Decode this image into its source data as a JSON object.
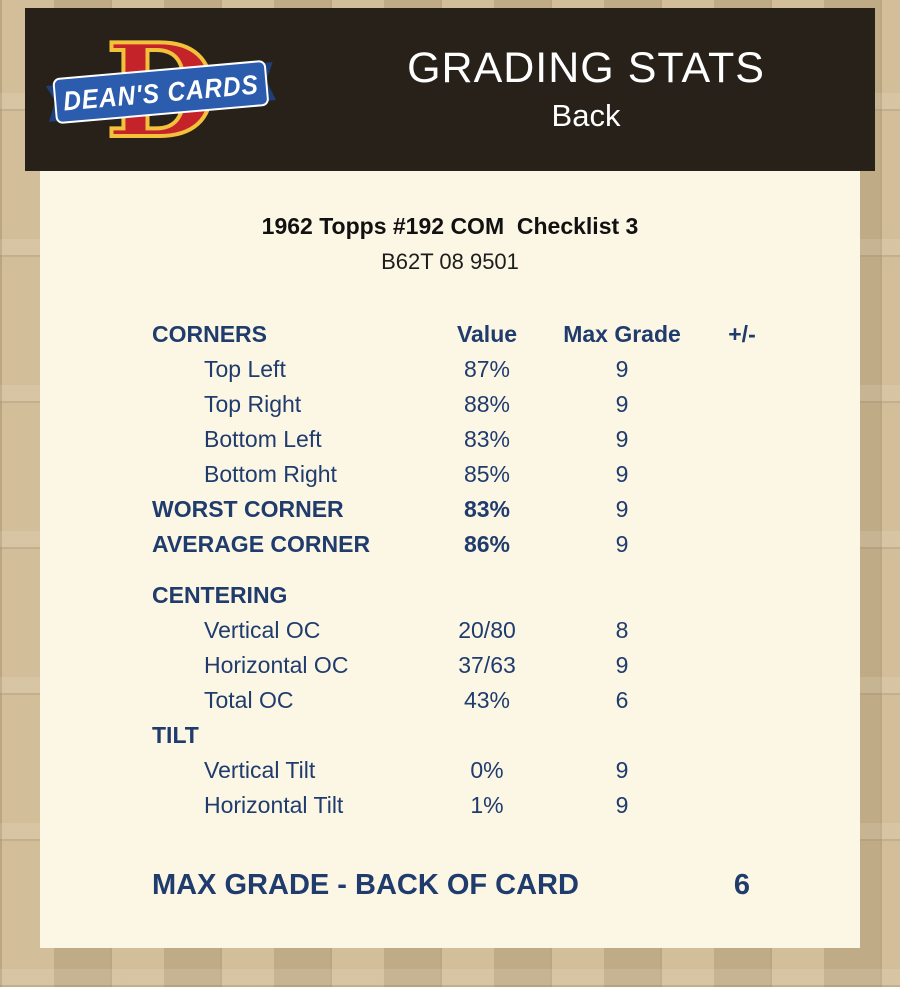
{
  "header": {
    "logo_text": "DEAN'S CARDS",
    "logo_letter": "D",
    "title": "GRADING STATS",
    "subtitle": "Back"
  },
  "card_info": {
    "title": "1962 Topps #192 COM  Checklist 3",
    "code": "B62T 08 9501"
  },
  "table": {
    "columns": [
      "CORNERS",
      "Value",
      "Max Grade",
      "+/-"
    ],
    "rows": [
      {
        "label": "Top Left",
        "value": "87%",
        "max": "9",
        "plusminus": "",
        "style": "indent"
      },
      {
        "label": "Top Right",
        "value": "88%",
        "max": "9",
        "plusminus": "",
        "style": "indent"
      },
      {
        "label": "Bottom Left",
        "value": "83%",
        "max": "9",
        "plusminus": "",
        "style": "indent"
      },
      {
        "label": "Bottom Right",
        "value": "85%",
        "max": "9",
        "plusminus": "",
        "style": "indent"
      },
      {
        "label": "WORST CORNER",
        "value": "83%",
        "max": "9",
        "plusminus": "",
        "style": "bold"
      },
      {
        "label": "AVERAGE CORNER",
        "value": "86%",
        "max": "9",
        "plusminus": "",
        "style": "bold"
      },
      {
        "label": "CENTERING",
        "value": "",
        "max": "",
        "plusminus": "",
        "style": "section gap-top"
      },
      {
        "label": "Vertical OC",
        "value": "20/80",
        "max": "8",
        "plusminus": "",
        "style": "indent"
      },
      {
        "label": "Horizontal OC",
        "value": "37/63",
        "max": "9",
        "plusminus": "",
        "style": "indent"
      },
      {
        "label": "Total OC",
        "value": "43%",
        "max": "6",
        "plusminus": "",
        "style": "indent"
      },
      {
        "label": "TILT",
        "value": "",
        "max": "",
        "plusminus": "",
        "style": "section"
      },
      {
        "label": "Vertical Tilt",
        "value": "0%",
        "max": "9",
        "plusminus": "",
        "style": "indent"
      },
      {
        "label": "Horizontal Tilt",
        "value": "1%",
        "max": "9",
        "plusminus": "",
        "style": "indent"
      }
    ]
  },
  "footer": {
    "label": "MAX GRADE - BACK OF CARD",
    "value": "6"
  },
  "colors": {
    "navy": "#1f3c6d",
    "panel_bg": "#fcf6e5",
    "page_bg": "#c8b28c",
    "header_bg": "#28211a",
    "logo_red": "#c4232a",
    "logo_gold": "#f3c13a",
    "logo_blue": "#2b5cad"
  }
}
